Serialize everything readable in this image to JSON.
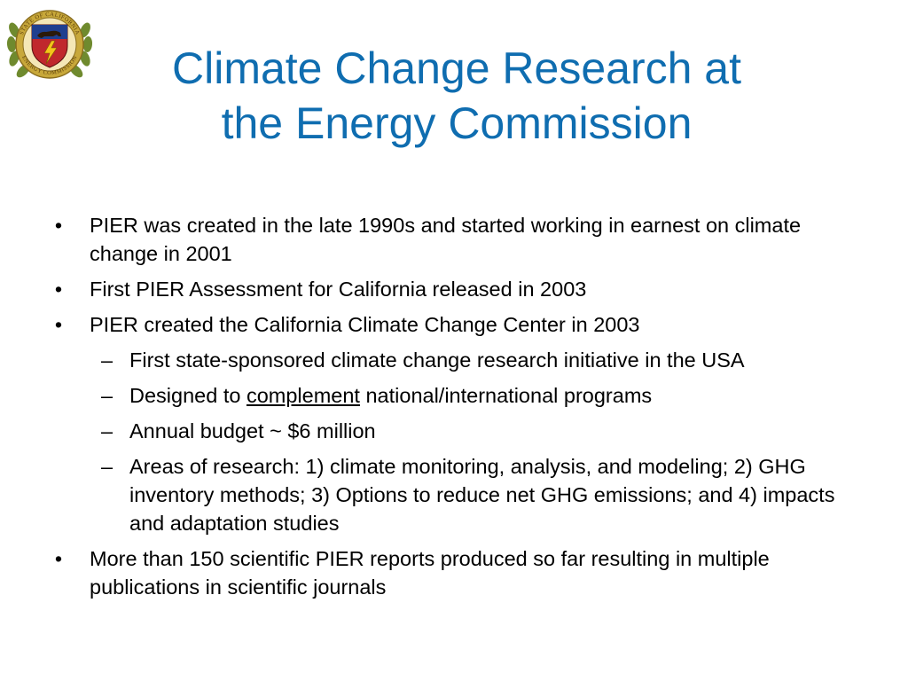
{
  "seal": {
    "icon": "california-energy-commission-seal-icon",
    "ring_text_top": "STATE OF CALIFORNIA",
    "ring_text_bottom": "ENERGY COMMISSION",
    "colors": {
      "ring": "#c8a83a",
      "shield_red": "#c0282d",
      "shield_blue": "#1f3f8f",
      "laurel": "#6f8a2e"
    }
  },
  "slide": {
    "title_line1": "Climate Change Research at",
    "title_line2": "the Energy Commission",
    "title_color": "#0f6db0",
    "bullet_marker": "•",
    "dash_marker": "–",
    "bullets": [
      {
        "text": "PIER was created in the late 1990s and started working in earnest on climate change in 2001"
      },
      {
        "text": "First PIER Assessment for California released in 2003"
      },
      {
        "text": "PIER created the California Climate Change Center in 2003"
      }
    ],
    "sub_bullets": [
      {
        "text": "First state-sponsored climate change research initiative in the USA"
      },
      {
        "prefix": "Designed to ",
        "underlined": "complement",
        "suffix": " national/international programs"
      },
      {
        "text": "Annual budget ~ $6 million"
      },
      {
        "text": "Areas of research:  1) climate monitoring, analysis, and modeling; 2) GHG inventory methods; 3) Options to reduce net GHG emissions; and 4) impacts and adaptation studies"
      }
    ],
    "last_bullet": {
      "text": "More than 150 scientific PIER reports produced so far resulting in multiple publications in scientific journals"
    }
  }
}
